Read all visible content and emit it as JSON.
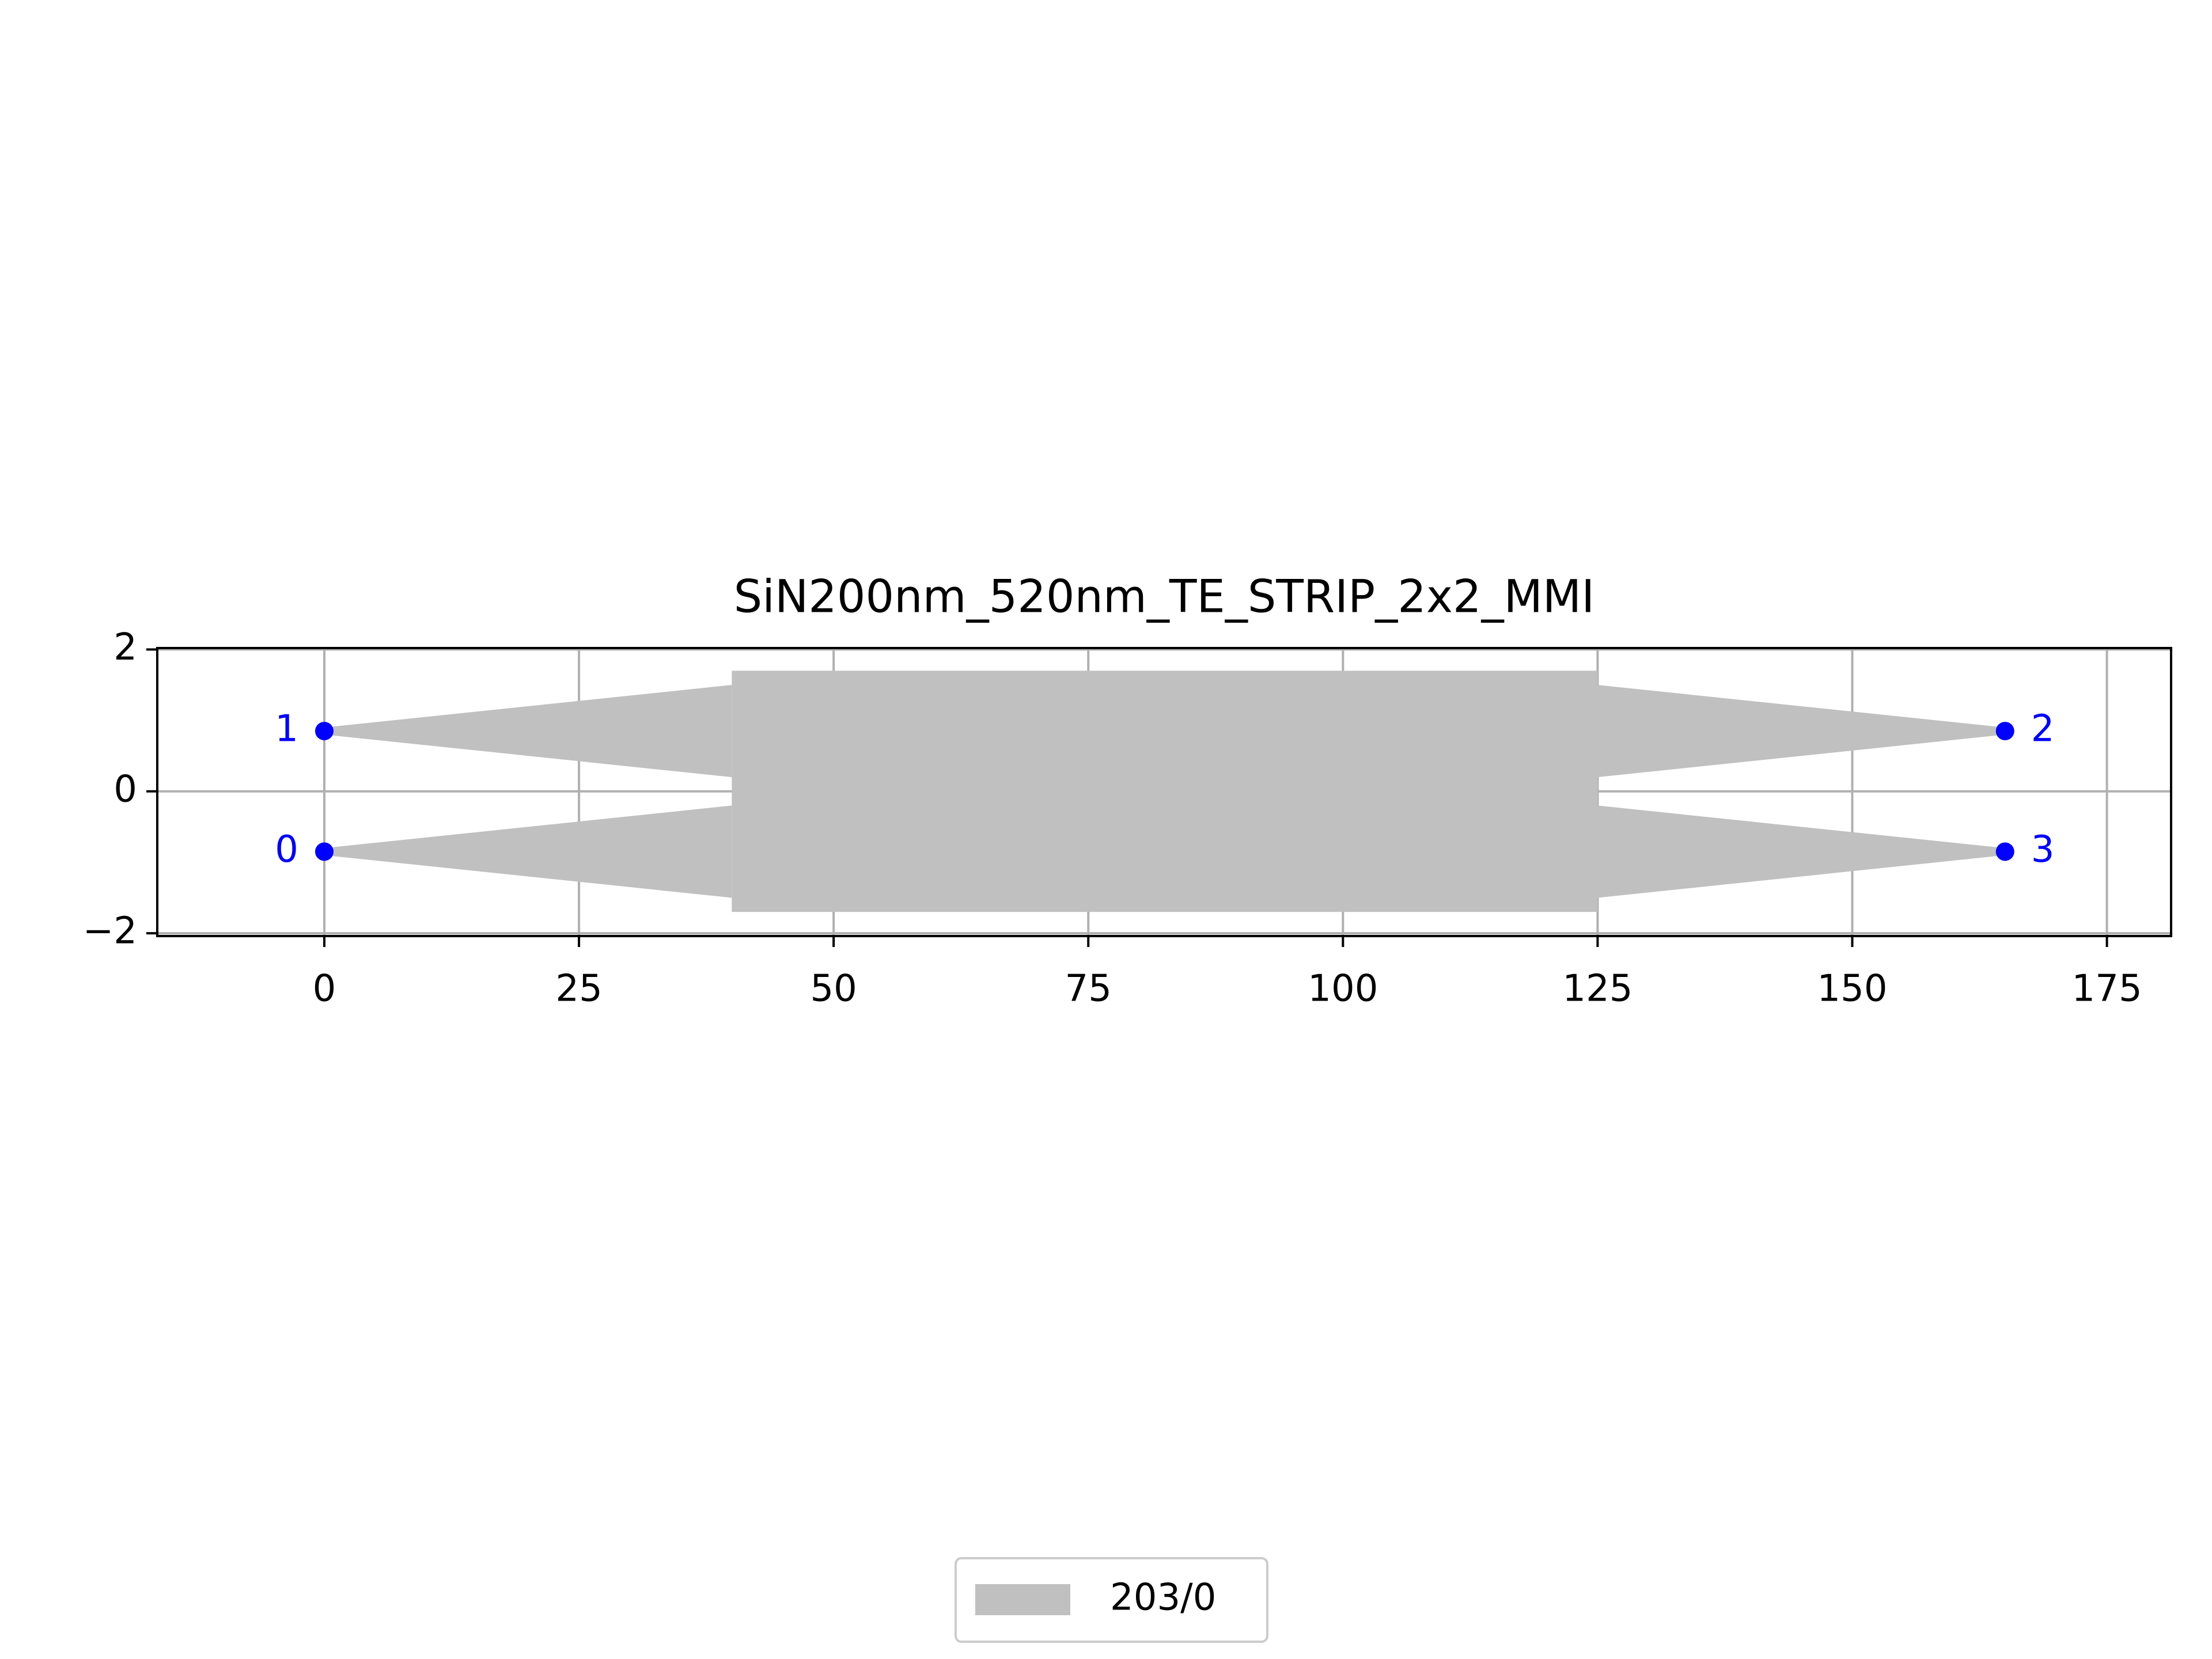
{
  "chart_data": {
    "type": "layout",
    "title": "SiN200nm_520nm_TE_STRIP_2x2_MMI",
    "xlim": [
      -16.4,
      181.3
    ],
    "ylim": [
      -2.04,
      2.02
    ],
    "xticks": [
      0,
      25,
      50,
      75,
      100,
      125,
      150,
      175
    ],
    "yticks": [
      {
        "value": -2,
        "label": "−2"
      },
      0,
      2
    ],
    "grid": true,
    "legend": "lower center",
    "series": [
      {
        "name": "203/0",
        "color": "#c0c0c0",
        "polygons": [
          {
            "x": [
              40,
              125,
              125,
              40
            ],
            "y": [
              -1.7,
              -1.7,
              1.7,
              1.7
            ]
          },
          {
            "x": [
              0,
              40,
              40,
              0
            ],
            "y": [
              0.8,
              0.2,
              1.5,
              0.9
            ]
          },
          {
            "x": [
              0,
              40,
              40,
              0
            ],
            "y": [
              -0.9,
              -1.5,
              -0.2,
              -0.8
            ]
          },
          {
            "x": [
              125,
              165,
              165,
              125
            ],
            "y": [
              0.2,
              0.8,
              0.9,
              1.5
            ]
          },
          {
            "x": [
              125,
              165,
              165,
              125
            ],
            "y": [
              -1.5,
              -0.9,
              -0.8,
              -0.2
            ]
          }
        ]
      }
    ],
    "ports": {
      "color": "#0000ff",
      "names": [
        "0",
        "1",
        "2",
        "3"
      ],
      "x": [
        0,
        0,
        165,
        165
      ],
      "y": [
        -0.85,
        0.85,
        0.85,
        -0.85
      ]
    }
  }
}
